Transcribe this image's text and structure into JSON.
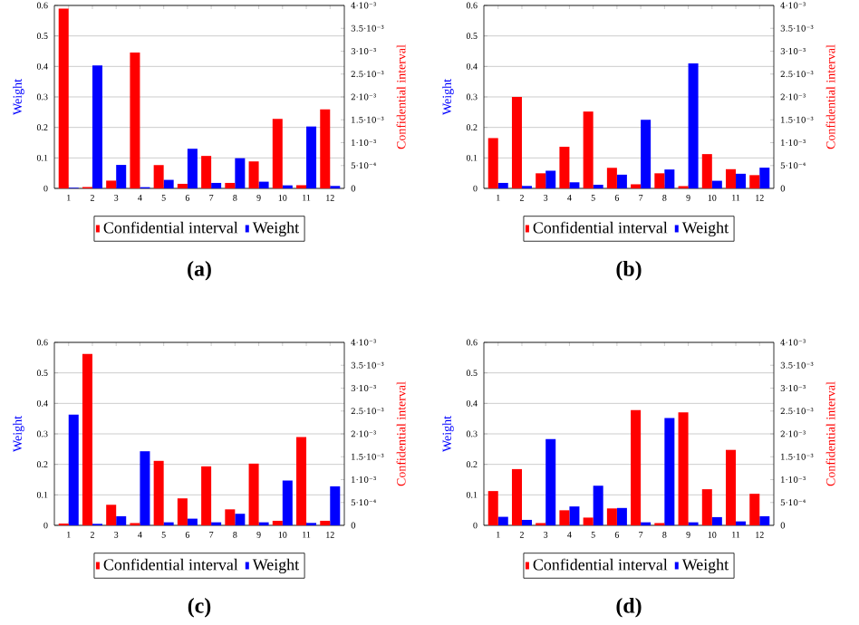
{
  "chart_data": [
    {
      "type": "bar",
      "title": "(a)",
      "categories": [
        "1",
        "2",
        "3",
        "4",
        "5",
        "6",
        "7",
        "8",
        "9",
        "10",
        "11",
        "12"
      ],
      "ylabel": "Weight",
      "y2label": "Confidential interval",
      "ylim": [
        0,
        0.6
      ],
      "yticks": [
        0,
        0.1,
        0.2,
        0.3,
        0.4,
        0.5,
        0.6
      ],
      "y2lim": [
        0,
        0.004
      ],
      "y2ticks": [
        0,
        {
          "value": 0.0005,
          "label": "5·10⁻⁴"
        },
        {
          "value": 0.001,
          "label": "1·10⁻³"
        },
        {
          "value": 0.0015,
          "label": "1.5·10⁻³"
        },
        {
          "value": 0.002,
          "label": "2·10⁻³"
        },
        {
          "value": 0.0025,
          "label": "2.5·10⁻³"
        },
        {
          "value": 0.003,
          "label": "3·10⁻³"
        },
        {
          "value": 0.0035,
          "label": "3.5·10⁻³"
        },
        {
          "value": 0.004,
          "label": "4·10⁻³"
        }
      ],
      "grid": "y",
      "legend": "bottom",
      "series": [
        {
          "name": "Confidential interval",
          "color": "#ff0000",
          "axis": "y2",
          "values": [
            0.00393,
            3e-05,
            0.00017,
            0.00297,
            0.00051,
            0.0001,
            0.00071,
            0.00012,
            0.00059,
            0.00152,
            7e-05,
            0.00173
          ]
        },
        {
          "name": "Weight",
          "color": "#0000ff",
          "values": [
            0.002,
            0.403,
            0.077,
            0.004,
            0.028,
            0.13,
            0.018,
            0.099,
            0.022,
            0.01,
            0.203,
            0.008
          ]
        }
      ]
    },
    {
      "type": "bar",
      "title": "(b)",
      "categories": [
        "1",
        "2",
        "3",
        "4",
        "5",
        "6",
        "7",
        "8",
        "9",
        "10",
        "11",
        "12"
      ],
      "ylabel": "Weight",
      "y2label": "Confidential interval",
      "ylim": [
        0,
        0.6
      ],
      "yticks": [
        0,
        0.1,
        0.2,
        0.3,
        0.4,
        0.5,
        0.6
      ],
      "y2lim": [
        0,
        0.004
      ],
      "y2ticks": [
        0,
        {
          "value": 0.0005,
          "label": "5·10⁻⁴"
        },
        {
          "value": 0.001,
          "label": "1·10⁻³"
        },
        {
          "value": 0.0015,
          "label": "1.5·10⁻³"
        },
        {
          "value": 0.002,
          "label": "2·10⁻³"
        },
        {
          "value": 0.0025,
          "label": "2.5·10⁻³"
        },
        {
          "value": 0.003,
          "label": "3·10⁻³"
        },
        {
          "value": 0.0035,
          "label": "3.5·10⁻³"
        },
        {
          "value": 0.004,
          "label": "4·10⁻³"
        }
      ],
      "grid": "y",
      "legend": "bottom",
      "series": [
        {
          "name": "Confidential interval",
          "color": "#ff0000",
          "axis": "y2",
          "values": [
            0.0011,
            0.002,
            0.00033,
            0.00091,
            0.00168,
            0.00045,
            9e-05,
            0.00033,
            5e-05,
            0.00075,
            0.00042,
            0.00029
          ]
        },
        {
          "name": "Weight",
          "color": "#0000ff",
          "values": [
            0.018,
            0.008,
            0.058,
            0.02,
            0.012,
            0.045,
            0.225,
            0.062,
            0.41,
            0.025,
            0.048,
            0.068
          ]
        }
      ]
    },
    {
      "type": "bar",
      "title": "(c)",
      "categories": [
        "1",
        "2",
        "3",
        "4",
        "5",
        "6",
        "7",
        "8",
        "9",
        "10",
        "11",
        "12"
      ],
      "ylabel": "Weight",
      "y2label": "Confidential interval",
      "ylim": [
        0,
        0.6
      ],
      "yticks": [
        0,
        0.1,
        0.2,
        0.3,
        0.4,
        0.5,
        0.6
      ],
      "y2lim": [
        0,
        0.004
      ],
      "y2ticks": [
        0,
        {
          "value": 0.0005,
          "label": "5·10⁻⁴"
        },
        {
          "value": 0.001,
          "label": "1·10⁻³"
        },
        {
          "value": 0.0015,
          "label": "1.5·10⁻³"
        },
        {
          "value": 0.002,
          "label": "2·10⁻³"
        },
        {
          "value": 0.0025,
          "label": "2.5·10⁻³"
        },
        {
          "value": 0.003,
          "label": "3·10⁻³"
        },
        {
          "value": 0.0035,
          "label": "3.5·10⁻³"
        },
        {
          "value": 0.004,
          "label": "4·10⁻³"
        }
      ],
      "grid": "y",
      "legend": "bottom",
      "series": [
        {
          "name": "Confidential interval",
          "color": "#ff0000",
          "axis": "y2",
          "values": [
            4e-05,
            0.00375,
            0.00045,
            5e-05,
            0.00141,
            0.00059,
            0.00129,
            0.00035,
            0.00135,
            0.0001,
            0.00193,
            0.0001
          ]
        },
        {
          "name": "Weight",
          "color": "#0000ff",
          "values": [
            0.363,
            0.005,
            0.03,
            0.243,
            0.01,
            0.022,
            0.01,
            0.038,
            0.01,
            0.147,
            0.008,
            0.128
          ]
        }
      ]
    },
    {
      "type": "bar",
      "title": "(d)",
      "categories": [
        "1",
        "2",
        "3",
        "4",
        "5",
        "6",
        "7",
        "8",
        "9",
        "10",
        "11",
        "12"
      ],
      "ylabel": "Weight",
      "y2label": "Confidential interval",
      "ylim": [
        0,
        0.6
      ],
      "yticks": [
        0,
        0.1,
        0.2,
        0.3,
        0.4,
        0.5,
        0.6
      ],
      "y2lim": [
        0,
        0.004
      ],
      "y2ticks": [
        0,
        {
          "value": 0.0005,
          "label": "5·10⁻⁴"
        },
        {
          "value": 0.001,
          "label": "1·10⁻³"
        },
        {
          "value": 0.0015,
          "label": "1.5·10⁻³"
        },
        {
          "value": 0.002,
          "label": "2·10⁻³"
        },
        {
          "value": 0.0025,
          "label": "2.5·10⁻³"
        },
        {
          "value": 0.003,
          "label": "3·10⁻³"
        },
        {
          "value": 0.0035,
          "label": "3.5·10⁻³"
        },
        {
          "value": 0.004,
          "label": "4·10⁻³"
        }
      ],
      "grid": "y",
      "legend": "bottom",
      "series": [
        {
          "name": "Confidential interval",
          "color": "#ff0000",
          "axis": "y2",
          "values": [
            0.00075,
            0.00123,
            5e-05,
            0.00033,
            0.00017,
            0.00037,
            0.00252,
            5e-05,
            0.00247,
            0.00079,
            0.00165,
            0.00069
          ]
        },
        {
          "name": "Weight",
          "color": "#0000ff",
          "values": [
            0.028,
            0.018,
            0.283,
            0.062,
            0.13,
            0.057,
            0.01,
            0.352,
            0.01,
            0.027,
            0.013,
            0.03
          ]
        }
      ]
    }
  ]
}
